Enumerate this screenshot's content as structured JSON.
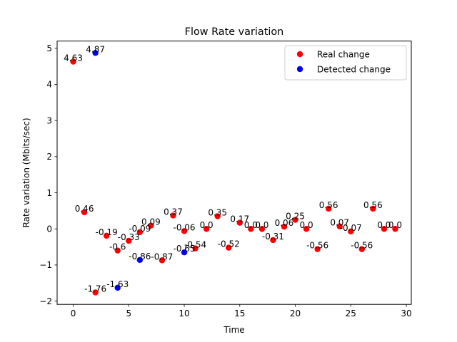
{
  "chart_data": {
    "type": "scatter",
    "title": "Flow Rate variation",
    "xlabel": "Time",
    "ylabel": "Rate variation (Mbits/sec)",
    "xlim": [
      -1.45,
      30.45
    ],
    "ylim": [
      -2.09,
      5.2
    ],
    "xticks": [
      0,
      5,
      10,
      15,
      20,
      25,
      30
    ],
    "yticks": [
      -2,
      -1,
      0,
      1,
      2,
      3,
      4,
      5
    ],
    "grid": false,
    "legend_position": "top-right",
    "series": [
      {
        "name": "Real change",
        "color": "#ff0000",
        "points": [
          {
            "x": 0,
            "y": 4.63,
            "label": "4.63"
          },
          {
            "x": 1,
            "y": 0.46,
            "label": "0.46"
          },
          {
            "x": 2,
            "y": -1.76,
            "label": "-1.76"
          },
          {
            "x": 3,
            "y": -0.19,
            "label": "-0.19"
          },
          {
            "x": 4,
            "y": -0.6,
            "label": "-0.6"
          },
          {
            "x": 5,
            "y": -0.33,
            "label": "-0.33"
          },
          {
            "x": 6,
            "y": -0.09,
            "label": "-0.09"
          },
          {
            "x": 7,
            "y": 0.09,
            "label": "0.09"
          },
          {
            "x": 8,
            "y": -0.87,
            "label": "-0.87"
          },
          {
            "x": 9,
            "y": 0.37,
            "label": "0.37"
          },
          {
            "x": 10,
            "y": -0.06,
            "label": "-0.06"
          },
          {
            "x": 11,
            "y": -0.54,
            "label": "-0.54"
          },
          {
            "x": 12,
            "y": 0.0,
            "label": "0.0"
          },
          {
            "x": 13,
            "y": 0.35,
            "label": "0.35"
          },
          {
            "x": 14,
            "y": -0.52,
            "label": "-0.52"
          },
          {
            "x": 15,
            "y": 0.17,
            "label": "0.17"
          },
          {
            "x": 16,
            "y": 0.0,
            "label": "0.0"
          },
          {
            "x": 17,
            "y": 0.0,
            "label": "0.0"
          },
          {
            "x": 18,
            "y": -0.31,
            "label": "-0.31"
          },
          {
            "x": 19,
            "y": 0.06,
            "label": "0.06"
          },
          {
            "x": 20,
            "y": 0.25,
            "label": "0.25"
          },
          {
            "x": 21,
            "y": 0.0,
            "label": "0.0"
          },
          {
            "x": 22,
            "y": -0.56,
            "label": "-0.56"
          },
          {
            "x": 23,
            "y": 0.56,
            "label": "0.56"
          },
          {
            "x": 24,
            "y": 0.07,
            "label": "0.07"
          },
          {
            "x": 25,
            "y": -0.07,
            "label": "-0.07"
          },
          {
            "x": 26,
            "y": -0.56,
            "label": "-0.56"
          },
          {
            "x": 27,
            "y": 0.56,
            "label": "0.56"
          },
          {
            "x": 28,
            "y": 0.0,
            "label": "0.0"
          },
          {
            "x": 29,
            "y": 0.0,
            "label": "0.0"
          }
        ]
      },
      {
        "name": "Detected change",
        "color": "#0000ff",
        "points": [
          {
            "x": 2,
            "y": 4.87,
            "label": "4.87"
          },
          {
            "x": 4,
            "y": -1.63,
            "label": "-1.63"
          },
          {
            "x": 6,
            "y": -0.86,
            "label": "-0.86"
          },
          {
            "x": 10,
            "y": -0.65,
            "label": "-0.65"
          }
        ]
      }
    ]
  }
}
